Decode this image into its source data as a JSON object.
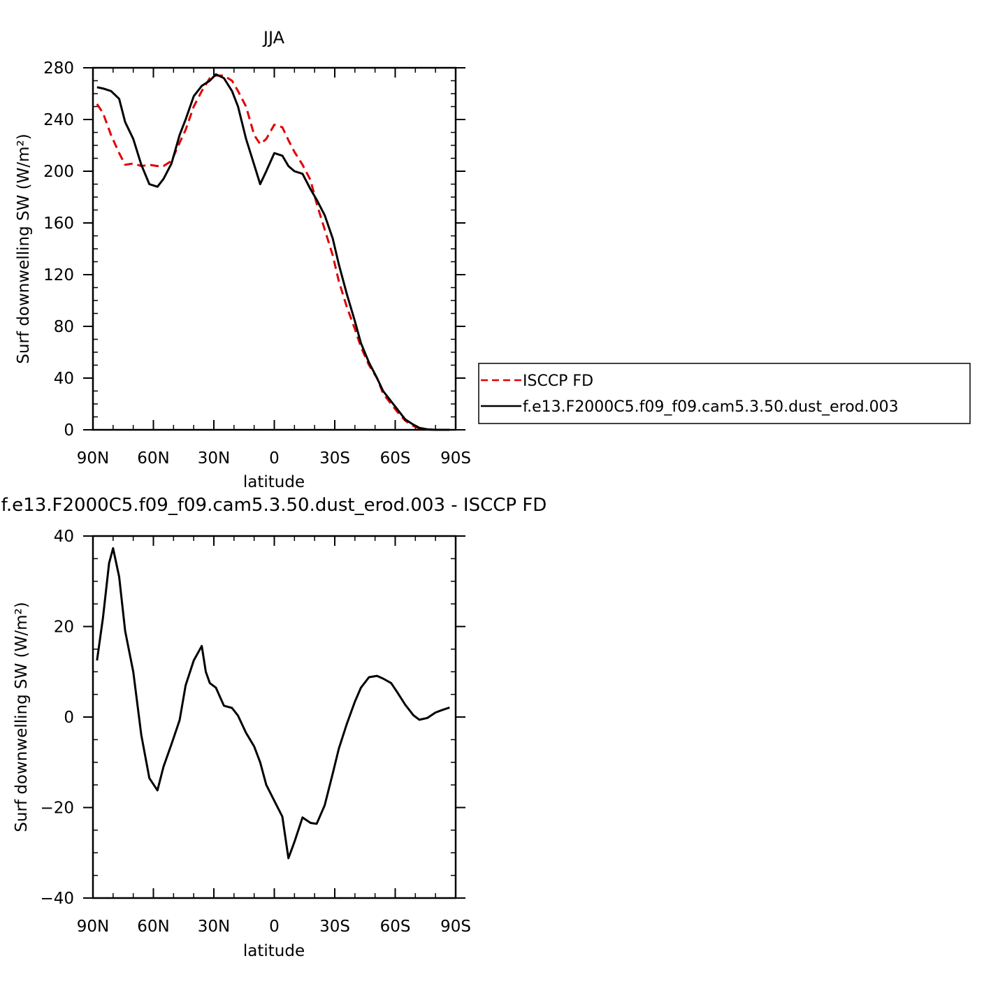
{
  "chart_data": [
    {
      "type": "line",
      "title": "JJA",
      "xlabel": "latitude",
      "ylabel": "Surf downwelling SW (W/m²)",
      "x_ticks": [
        {
          "value": 90,
          "label": "90N"
        },
        {
          "value": 60,
          "label": "60N"
        },
        {
          "value": 30,
          "label": "30N"
        },
        {
          "value": 0,
          "label": "0"
        },
        {
          "value": -30,
          "label": "30S"
        },
        {
          "value": -60,
          "label": "60S"
        },
        {
          "value": -90,
          "label": "90S"
        }
      ],
      "y_ticks": [
        0,
        40,
        80,
        120,
        160,
        200,
        240,
        280
      ],
      "xlim": [
        90,
        -90
      ],
      "ylim": [
        0,
        280
      ],
      "legend": "right",
      "series": [
        {
          "name": "ISCCP FD",
          "color": "#e00000",
          "dash": "dashed",
          "x": [
            88,
            85,
            81,
            77,
            74,
            70,
            66,
            62,
            58,
            55,
            51,
            47,
            44,
            40,
            36,
            32,
            29,
            25,
            21,
            18,
            14,
            10,
            7,
            4,
            0,
            -4,
            -7,
            -10,
            -14,
            -18,
            -21,
            -25,
            -29,
            -32,
            -36,
            -40,
            -43,
            -47,
            -51,
            -54,
            -58,
            -61,
            -65,
            -69,
            -72,
            -76,
            -80,
            -83,
            -87
          ],
          "values": [
            252,
            245,
            228,
            214,
            205,
            206,
            204,
            205,
            204,
            204,
            208,
            222,
            232,
            250,
            262,
            272,
            274,
            274,
            270,
            262,
            250,
            228,
            221,
            225,
            236,
            234,
            224,
            215,
            205,
            193,
            175,
            155,
            135,
            115,
            95,
            78,
            64,
            50,
            40,
            28,
            20,
            14,
            7,
            3,
            1,
            0.3,
            0,
            0,
            0
          ]
        },
        {
          "name": "f.e13.F2000C5.f09_f09.cam5.3.50.dust_erod.003",
          "color": "#000000",
          "dash": "solid",
          "x": [
            88,
            85,
            81,
            77,
            74,
            70,
            66,
            62,
            58,
            55,
            51,
            47,
            44,
            40,
            36,
            32,
            29,
            25,
            21,
            18,
            14,
            10,
            7,
            4,
            0,
            -4,
            -7,
            -10,
            -14,
            -18,
            -21,
            -25,
            -29,
            -32,
            -36,
            -40,
            -43,
            -47,
            -51,
            -54,
            -58,
            -61,
            -65,
            -69,
            -72,
            -76,
            -80,
            -83,
            -87
          ],
          "values": [
            265,
            264,
            262,
            256,
            238,
            225,
            205,
            190,
            188,
            194,
            206,
            228,
            240,
            258,
            266,
            270,
            275,
            272,
            262,
            250,
            225,
            205,
            190,
            200,
            214,
            212,
            204,
            200,
            198,
            186,
            178,
            166,
            148,
            128,
            105,
            84,
            67,
            52,
            40,
            30,
            22,
            16,
            8,
            4,
            1.5,
            0.3,
            0,
            0,
            0
          ]
        }
      ]
    },
    {
      "type": "line",
      "title": "f.e13.F2000C5.f09_f09.cam5.3.50.dust_erod.003 - ISCCP FD",
      "xlabel": "latitude",
      "ylabel": "Surf downwelling SW (W/m²)",
      "x_ticks": [
        {
          "value": 90,
          "label": "90N"
        },
        {
          "value": 60,
          "label": "60N"
        },
        {
          "value": 30,
          "label": "30N"
        },
        {
          "value": 0,
          "label": "0"
        },
        {
          "value": -30,
          "label": "30S"
        },
        {
          "value": -60,
          "label": "60S"
        },
        {
          "value": -90,
          "label": "90S"
        }
      ],
      "y_ticks": [
        -40,
        -20,
        0,
        20,
        40
      ],
      "xlim": [
        90,
        -90
      ],
      "ylim": [
        -40,
        40
      ],
      "series": [
        {
          "color": "#000000",
          "dash": "solid",
          "x": [
            88,
            85,
            82,
            80,
            77,
            74,
            70,
            66,
            62,
            58,
            55,
            51,
            47,
            44,
            40,
            36,
            34,
            32,
            29,
            25,
            21,
            18,
            14,
            10,
            7,
            4,
            0,
            -4,
            -7,
            -10,
            -14,
            -18,
            -21,
            -25,
            -29,
            -32,
            -36,
            -40,
            -43,
            -47,
            -51,
            -54,
            -58,
            -61,
            -65,
            -69,
            -72,
            -76,
            -80,
            -83,
            -87
          ],
          "values": [
            12.5,
            22,
            34,
            37.3,
            31,
            19,
            10,
            -4,
            -13.5,
            -16.2,
            -11,
            -6,
            -0.7,
            7,
            12.5,
            15.7,
            10,
            7.5,
            6.5,
            2.5,
            2,
            0.3,
            -3.5,
            -6.5,
            -10,
            -15,
            -18.5,
            -22,
            -31.2,
            -27.6,
            -22.2,
            -23.4,
            -23.6,
            -19.5,
            -12.5,
            -7,
            -1.5,
            3.4,
            6.5,
            8.8,
            9.1,
            8.5,
            7.5,
            5.5,
            2.7,
            0.4,
            -0.6,
            -0.2,
            1,
            1.5,
            2.1
          ]
        }
      ]
    }
  ]
}
